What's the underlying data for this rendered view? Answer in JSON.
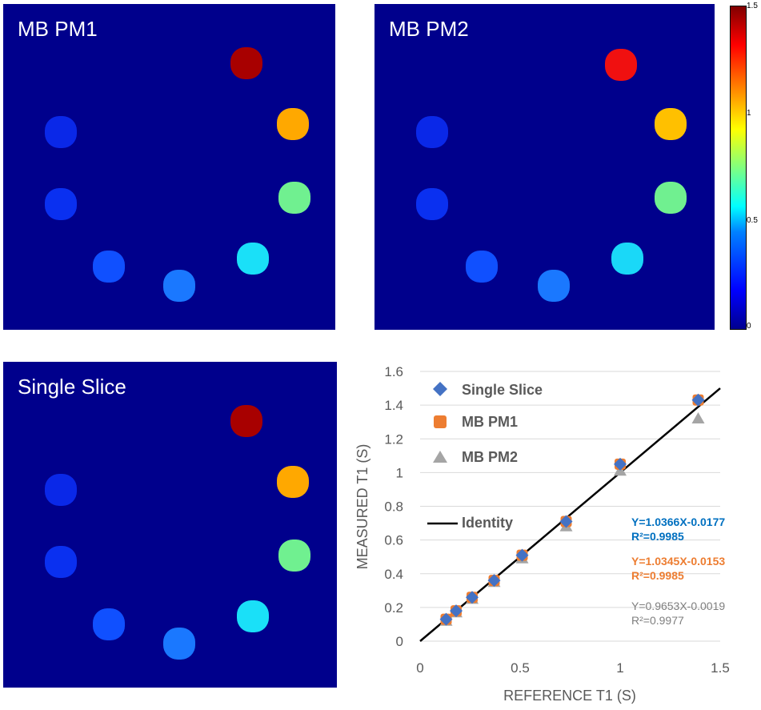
{
  "panels": [
    {
      "title": "MB PM1",
      "id": "mb-pm1"
    },
    {
      "title": "MB PM2",
      "id": "mb-pm2"
    },
    {
      "title": "Single Slice",
      "id": "single-slice"
    }
  ],
  "colorbar": {
    "ticks": [
      "1.5",
      "1",
      "0.5",
      "0"
    ]
  },
  "chart_data": {
    "type": "scatter",
    "xlabel": "REFERENCE T1 (S)",
    "ylabel": "MEASURED T1 (S)",
    "xlim": [
      0,
      1.5
    ],
    "ylim": [
      0,
      1.6
    ],
    "x_ticks": [
      "0",
      "0.5",
      "1",
      "1.5"
    ],
    "y_ticks": [
      "0",
      "0.2",
      "0.4",
      "0.6",
      "0.8",
      "1",
      "1.2",
      "1.4",
      "1.6"
    ],
    "x": [
      0.13,
      0.18,
      0.26,
      0.37,
      0.51,
      0.73,
      1.0,
      1.39
    ],
    "series": [
      {
        "name": "Single Slice",
        "marker": "diamond",
        "color": "#4472c4",
        "values": [
          0.13,
          0.18,
          0.26,
          0.36,
          0.51,
          0.71,
          1.05,
          1.43
        ]
      },
      {
        "name": "MB PM1",
        "marker": "square",
        "color": "#ed7d31",
        "values": [
          0.13,
          0.18,
          0.26,
          0.36,
          0.51,
          0.71,
          1.05,
          1.43
        ]
      },
      {
        "name": "MB PM2",
        "marker": "triangle",
        "color": "#a5a5a5",
        "values": [
          0.12,
          0.17,
          0.25,
          0.35,
          0.49,
          0.68,
          1.01,
          1.32
        ]
      }
    ],
    "identity": {
      "name": "Identity",
      "x": [
        0,
        1.5
      ],
      "y": [
        0,
        1.5
      ]
    },
    "annotations": [
      {
        "eq": "Y=1.0366X-0.0177",
        "r2": "R²=0.9985",
        "color": "#0070c0"
      },
      {
        "eq": "Y=1.0345X-0.0153",
        "r2": "R²=0.9985",
        "color": "#ed7d31"
      },
      {
        "eq": "Y=0.9653X-0.0019",
        "r2": "R²=0.9977",
        "color": "#7f7f7f"
      }
    ]
  }
}
